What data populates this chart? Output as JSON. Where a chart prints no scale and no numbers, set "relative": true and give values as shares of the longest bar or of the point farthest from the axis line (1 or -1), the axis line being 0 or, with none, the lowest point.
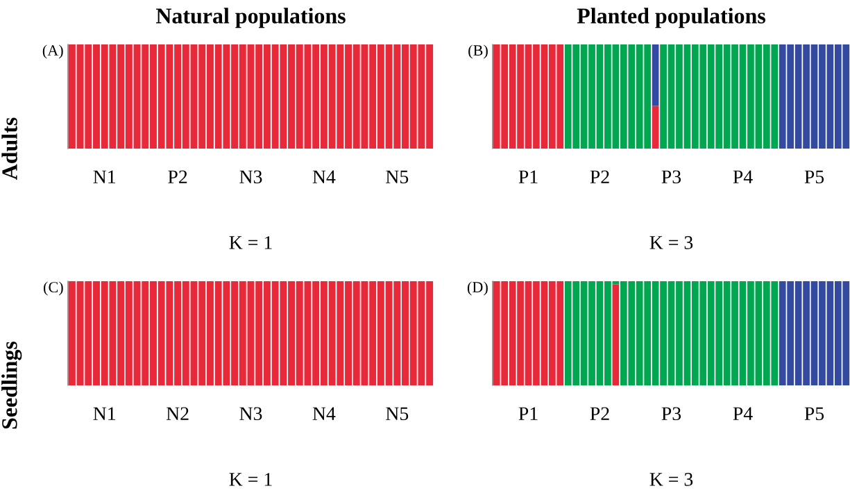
{
  "chart_data": [
    {
      "type": "bar",
      "title": "Natural populations",
      "ylabel": "Adults",
      "xlabel": "K = 1",
      "annotations": [
        "(A)"
      ],
      "stacked": true,
      "relative": true,
      "categories": [
        null,
        null,
        null,
        null,
        "N1",
        null,
        null,
        null,
        null,
        null,
        null,
        null,
        null,
        "P2",
        null,
        null,
        null,
        null,
        null,
        null,
        null,
        null,
        "N3",
        null,
        null,
        null,
        null,
        null,
        null,
        null,
        null,
        "N4",
        null,
        null,
        null,
        null,
        null,
        null,
        null,
        null,
        "N5",
        null,
        null,
        null,
        null
      ],
      "series": [
        {
          "color": "#e8293a",
          "values": [
            1,
            1,
            1,
            1,
            1,
            1,
            1,
            1,
            1,
            1,
            1,
            1,
            1,
            1,
            1,
            1,
            1,
            1,
            1,
            1,
            1,
            1,
            1,
            1,
            1,
            1,
            1,
            1,
            1,
            1,
            1,
            1,
            1,
            1,
            1,
            1,
            1,
            1,
            1,
            1,
            1,
            1,
            1,
            1,
            1
          ]
        }
      ]
    },
    {
      "type": "bar",
      "title": "Planted populations",
      "xlabel": "K = 3",
      "annotations": [
        "(B)"
      ],
      "stacked": true,
      "relative": true,
      "categories": [
        null,
        null,
        null,
        null,
        "P1",
        null,
        null,
        null,
        null,
        null,
        null,
        null,
        null,
        "P2",
        null,
        null,
        null,
        null,
        null,
        null,
        null,
        null,
        "P3",
        null,
        null,
        null,
        null,
        null,
        null,
        null,
        null,
        "P4",
        null,
        null,
        null,
        null,
        null,
        null,
        null,
        null,
        "P5",
        null,
        null,
        null,
        null
      ],
      "series": [
        {
          "color": "#e8293a",
          "values": [
            1,
            1,
            1,
            1,
            1,
            1,
            1,
            1,
            1,
            0,
            0,
            0,
            0,
            0,
            0,
            0,
            0,
            0,
            0,
            0,
            0.41,
            0,
            0,
            0,
            0,
            0,
            0,
            0,
            0,
            0,
            0,
            0,
            0,
            0,
            0,
            0,
            0,
            0,
            0,
            0,
            0,
            0,
            0,
            0,
            0
          ]
        },
        {
          "color": "#00a650",
          "values": [
            0,
            0,
            0,
            0,
            0,
            0,
            0,
            0,
            0,
            1,
            1,
            1,
            1,
            1,
            1,
            1,
            1,
            1,
            1,
            1,
            0,
            1,
            1,
            1,
            1,
            1,
            1,
            1,
            1,
            1,
            1,
            1,
            1,
            1,
            1,
            1,
            0,
            0,
            0,
            0,
            0,
            0,
            0,
            0,
            0
          ]
        },
        {
          "color": "#344aa0",
          "values": [
            0,
            0,
            0,
            0,
            0,
            0,
            0,
            0,
            0,
            0,
            0,
            0,
            0,
            0,
            0,
            0,
            0,
            0,
            0,
            0,
            0.59,
            0,
            0,
            0,
            0,
            0,
            0,
            0,
            0,
            0,
            0,
            0,
            0,
            0,
            0,
            0,
            1,
            1,
            1,
            1,
            1,
            1,
            1,
            1,
            1
          ]
        }
      ]
    },
    {
      "type": "bar",
      "ylabel": "Seedlings",
      "xlabel": "K = 1",
      "annotations": [
        "(C)"
      ],
      "stacked": true,
      "relative": true,
      "categories": [
        null,
        null,
        null,
        null,
        "N1",
        null,
        null,
        null,
        null,
        null,
        null,
        null,
        null,
        "N2",
        null,
        null,
        null,
        null,
        null,
        null,
        null,
        null,
        "N3",
        null,
        null,
        null,
        null,
        null,
        null,
        null,
        null,
        "N4",
        null,
        null,
        null,
        null,
        null,
        null,
        null,
        null,
        "N5",
        null,
        null,
        null,
        null
      ],
      "series": [
        {
          "color": "#e8293a",
          "values": [
            1,
            1,
            1,
            1,
            1,
            1,
            1,
            1,
            1,
            1,
            1,
            1,
            1,
            1,
            1,
            1,
            1,
            1,
            1,
            1,
            1,
            1,
            1,
            1,
            1,
            1,
            1,
            1,
            1,
            1,
            1,
            1,
            1,
            1,
            1,
            1,
            1,
            1,
            1,
            1,
            1,
            1,
            1,
            1,
            1
          ]
        }
      ]
    },
    {
      "type": "bar",
      "xlabel": "K = 3",
      "annotations": [
        "(D)"
      ],
      "stacked": true,
      "relative": true,
      "categories": [
        null,
        null,
        null,
        null,
        "P1",
        null,
        null,
        null,
        null,
        null,
        null,
        null,
        null,
        "P2",
        null,
        null,
        null,
        null,
        null,
        null,
        null,
        null,
        "P3",
        null,
        null,
        null,
        null,
        null,
        null,
        null,
        null,
        "P4",
        null,
        null,
        null,
        null,
        null,
        null,
        null,
        null,
        "P5",
        null,
        null,
        null,
        null
      ],
      "series": [
        {
          "color": "#e8293a",
          "values": [
            1,
            1,
            1,
            1,
            1,
            1,
            1,
            1,
            1,
            0,
            0,
            0,
            0,
            0,
            0,
            0.97,
            0,
            0,
            0,
            0,
            0,
            0,
            0,
            0,
            0,
            0,
            0,
            0,
            0,
            0,
            0,
            0,
            0,
            0,
            0,
            0,
            0,
            0,
            0,
            0,
            0,
            0,
            0,
            0,
            0
          ]
        },
        {
          "color": "#00a650",
          "values": [
            0,
            0,
            0,
            0,
            0,
            0,
            0,
            0,
            0,
            1,
            1,
            1,
            1,
            1,
            1,
            0.03,
            1,
            1,
            1,
            1,
            1,
            1,
            1,
            1,
            1,
            1,
            1,
            1,
            1,
            1,
            1,
            1,
            1,
            1,
            1,
            1,
            0,
            0,
            0,
            0,
            0,
            0,
            0,
            0,
            0
          ]
        },
        {
          "color": "#344aa0",
          "values": [
            0,
            0,
            0,
            0,
            0,
            0,
            0,
            0,
            0,
            0,
            0,
            0,
            0,
            0,
            0,
            0,
            0,
            0,
            0,
            0,
            0,
            0,
            0,
            0,
            0,
            0,
            0,
            0,
            0,
            0,
            0,
            0,
            0,
            0,
            0,
            0,
            1,
            1,
            1,
            1,
            1,
            1,
            1,
            1,
            1
          ]
        }
      ]
    }
  ]
}
